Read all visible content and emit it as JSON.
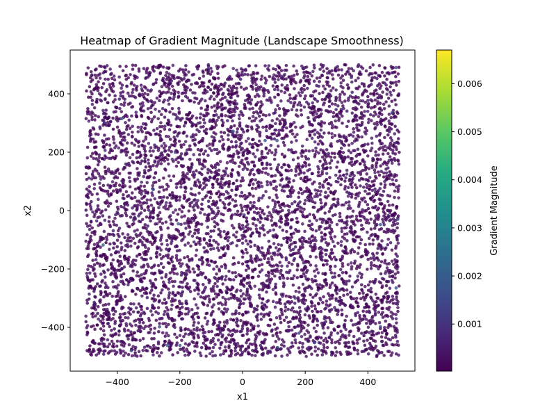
{
  "chart_data": {
    "type": "scatter",
    "title": "Heatmap of Gradient Magnitude (Landscape Smoothness)",
    "xlabel": "x1",
    "ylabel": "x2",
    "xlim": [
      -550,
      550
    ],
    "ylim": [
      -550,
      550
    ],
    "xticks": [
      -400,
      -200,
      0,
      200,
      400
    ],
    "yticks": [
      -400,
      -200,
      0,
      200,
      400
    ],
    "grid": false,
    "colormap": "viridis",
    "point_alpha": 0.8,
    "colorbar": {
      "label": "Gradient Magnitude",
      "range": [
        2e-05,
        0.0067
      ],
      "ticks": [
        0.001,
        0.002,
        0.003,
        0.004,
        0.005,
        0.006
      ]
    },
    "points": {
      "background": {
        "count": 6000,
        "x_range": [
          -500,
          500
        ],
        "y_range": [
          -500,
          500
        ],
        "distribution": "uniform random",
        "value_range": [
          2e-05,
          0.0005
        ]
      },
      "highlighted": [
        {
          "x": -385,
          "y": 315,
          "value": 0.0019
        },
        {
          "x": -30,
          "y": 272,
          "value": 0.0019
        },
        {
          "x": 72,
          "y": 240,
          "value": 0.0018
        },
        {
          "x": 110,
          "y": 240,
          "value": 0.0017
        },
        {
          "x": -285,
          "y": 72,
          "value": 0.0018
        },
        {
          "x": -205,
          "y": -45,
          "value": 0.0017
        },
        {
          "x": -445,
          "y": -118,
          "value": 0.0021
        },
        {
          "x": 440,
          "y": -48,
          "value": 0.0019
        },
        {
          "x": 495,
          "y": -30,
          "value": 0.0015
        },
        {
          "x": 490,
          "y": -265,
          "value": 0.0017
        },
        {
          "x": -265,
          "y": -398,
          "value": 0.0016
        },
        {
          "x": -240,
          "y": -462,
          "value": 0.0019
        },
        {
          "x": -200,
          "y": -462,
          "value": 0.0016
        },
        {
          "x": -355,
          "y": -480,
          "value": 0.0015
        },
        {
          "x": 112,
          "y": -470,
          "value": 0.0018
        },
        {
          "x": 230,
          "y": -452,
          "value": 0.0016
        },
        {
          "x": 180,
          "y": -420,
          "value": 0.0014
        },
        {
          "x": 490,
          "y": 490,
          "value": 0.0015
        },
        {
          "x": 477,
          "y": 335,
          "value": 0.0013
        },
        {
          "x": 5,
          "y": -15,
          "value": 0.0012
        },
        {
          "x": -215,
          "y": 200,
          "value": 0.0012
        },
        {
          "x": 440,
          "y": -398,
          "value": 0.0014
        },
        {
          "x": 168,
          "y": -300,
          "value": 0.0011
        },
        {
          "x": -440,
          "y": 300,
          "value": 0.0011
        },
        {
          "x": 340,
          "y": 60,
          "value": 0.001
        }
      ]
    }
  }
}
